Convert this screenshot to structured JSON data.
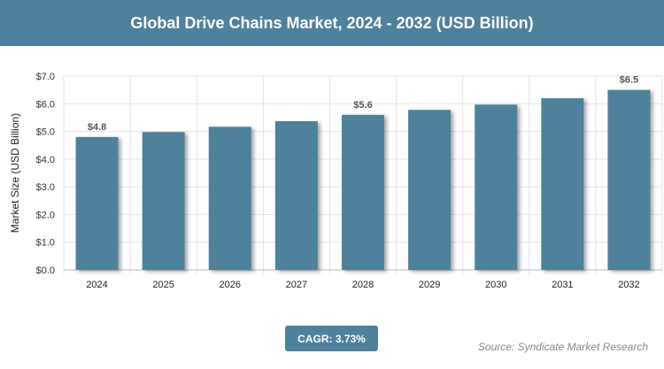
{
  "header": {
    "title": "Global Drive Chains Market, 2024 - 2032 (USD Billion)"
  },
  "footer": {
    "cagr": "CAGR: 3.73%",
    "source": "Source: Syndicate Market Research"
  },
  "colors": {
    "bar": "#4e819c",
    "header": "#4e819c"
  },
  "chart_data": {
    "type": "bar",
    "title": "Global Drive Chains Market, 2024 - 2032 (USD Billion)",
    "xlabel": "",
    "ylabel": "Market Size (USD Billion)",
    "categories": [
      "2024",
      "2025",
      "2026",
      "2027",
      "2028",
      "2029",
      "2030",
      "2031",
      "2032"
    ],
    "values": [
      4.8,
      4.98,
      5.17,
      5.37,
      5.6,
      5.78,
      5.97,
      6.2,
      6.5
    ],
    "data_labels": {
      "2024": "$4.8",
      "2028": "$5.6",
      "2032": "$6.5"
    },
    "ylim": [
      0,
      7
    ],
    "yticks": [
      "$0.0",
      "$1.0",
      "$2.0",
      "$3.0",
      "$4.0",
      "$5.0",
      "$6.0",
      "$7.0"
    ],
    "grid": true
  }
}
